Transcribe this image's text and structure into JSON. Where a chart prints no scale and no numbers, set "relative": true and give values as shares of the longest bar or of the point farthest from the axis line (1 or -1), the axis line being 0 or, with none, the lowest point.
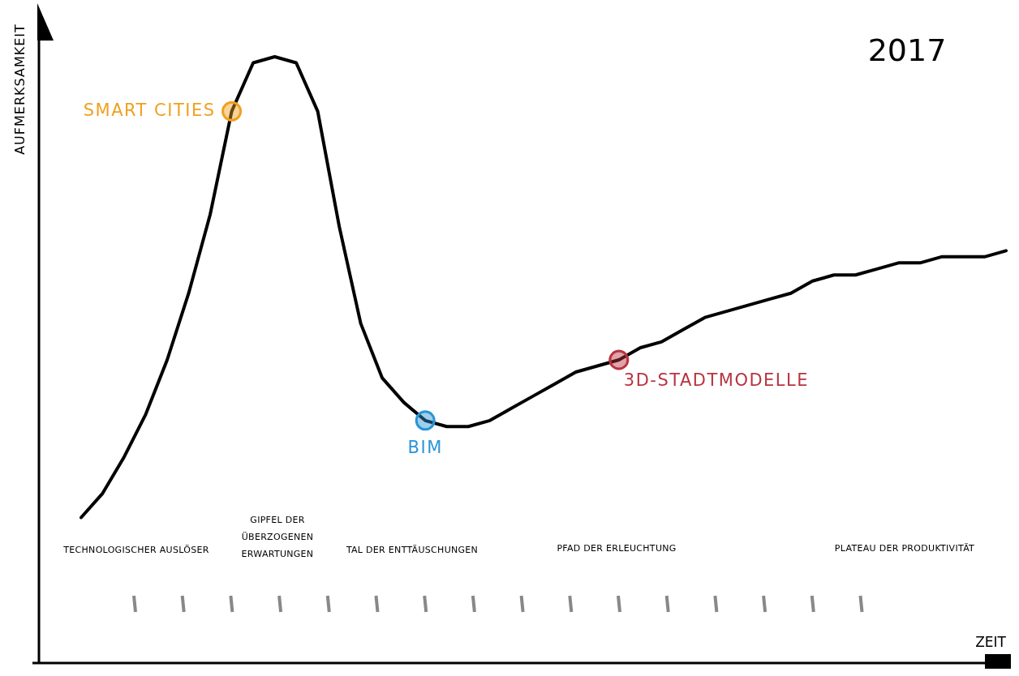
{
  "chart_data": {
    "type": "line",
    "relative": true,
    "title": "2017",
    "xlabel": "ZEIT",
    "ylabel": "AUFMERKSAMKEIT",
    "grid": false,
    "categories": [
      null,
      null,
      null,
      null,
      null,
      null,
      null,
      null,
      null,
      null,
      null,
      null,
      null,
      null,
      null,
      null,
      null,
      null,
      null,
      null,
      null,
      null,
      null,
      null,
      null,
      null,
      null,
      null,
      null,
      null,
      null,
      null,
      null,
      null,
      null,
      null,
      null,
      null,
      null,
      null,
      null,
      null,
      null,
      null
    ],
    "series": [
      {
        "color": "#000000",
        "values": [
          0.24,
          0.28,
          0.34,
          0.41,
          0.5,
          0.61,
          0.74,
          0.91,
          0.99,
          1,
          0.99,
          0.91,
          0.72,
          0.56,
          0.47,
          0.43,
          0.4,
          0.39,
          0.39,
          0.4,
          0.42,
          0.44,
          0.46,
          0.48,
          0.49,
          0.5,
          0.52,
          0.53,
          0.55,
          0.57,
          0.58,
          0.59,
          0.6,
          0.61,
          0.63,
          0.64,
          0.64,
          0.65,
          0.66,
          0.66,
          0.67,
          0.67,
          0.67,
          0.68
        ],
        "colors": [
          null,
          null,
          null,
          null,
          null,
          null,
          null,
          "#f0a020",
          null,
          null,
          null,
          null,
          null,
          null,
          null,
          null,
          "#2a95d5",
          null,
          null,
          null,
          null,
          null,
          null,
          null,
          null,
          "#b8333f",
          null,
          null,
          null,
          null,
          null,
          null,
          null,
          null,
          null,
          null,
          null,
          null,
          null,
          null,
          null,
          null,
          null,
          null
        ]
      }
    ],
    "annotations": [
      "TECHNOLOGISCHER AUSLÖSER",
      "GIPFEL DER ÜBERZOGENEN ERWARTUNGEN",
      "TAL DER ENTTÄUSCHUNGEN",
      "PFAD DER ERLEUCHTUNG",
      "PLATEAU DER PRODUKTIVITÄT",
      "SMART CITIES",
      "BIM",
      "3D-STADTMODELLE"
    ]
  }
}
